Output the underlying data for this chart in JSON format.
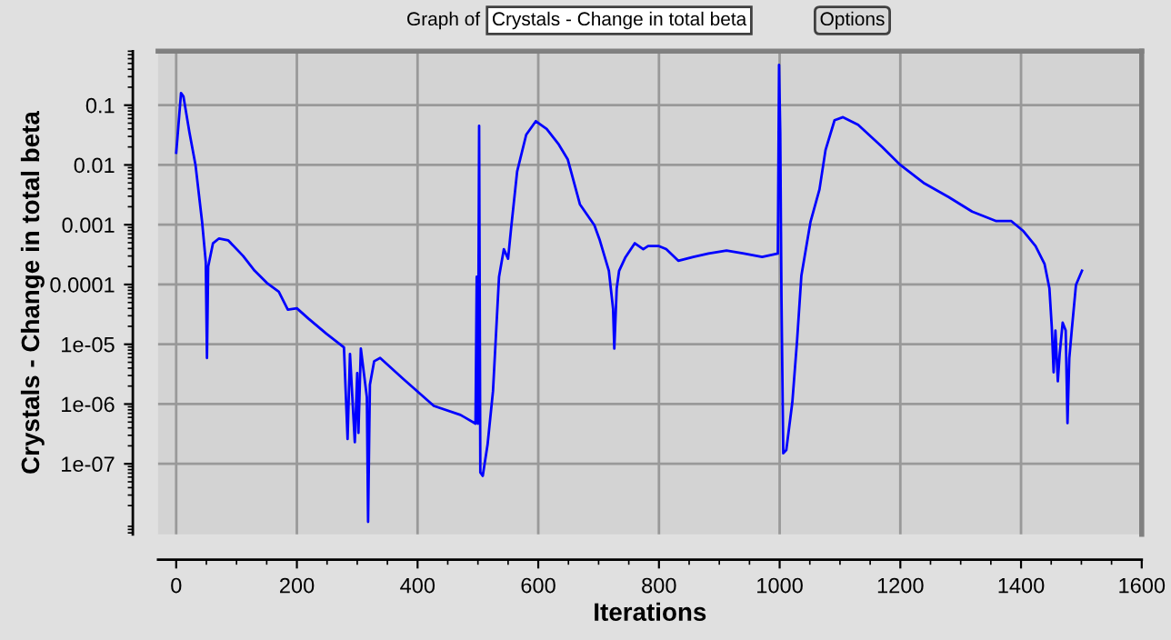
{
  "chart_data": {
    "type": "line",
    "annotations": [
      "Graph of",
      "Crystals - Change in total beta",
      "Options"
    ],
    "xlabel": "Iterations",
    "ylabel": "Crystals - Change in total beta",
    "log": "y",
    "grid": true,
    "marker": "none",
    "line_style": "solid",
    "xlim": [
      -30,
      1600
    ],
    "xticks": [
      0,
      200,
      400,
      600,
      800,
      1000,
      1200,
      1400,
      1600
    ],
    "ylim": [
      6.6e-09,
      0.8
    ],
    "yticks": [
      1e-07,
      1e-06,
      1e-05,
      0.0001,
      0.001,
      0.01,
      0.1
    ],
    "series": [
      {
        "color": "#0000ff",
        "x": [
          0,
          2,
          8,
          12,
          22,
          32,
          43,
          49,
          51,
          53,
          61,
          71,
          86,
          111,
          130,
          150,
          170,
          185,
          200,
          219,
          249,
          278,
          284,
          288,
          296,
          300,
          302,
          306,
          316,
          318,
          321,
          328,
          338,
          377,
          427,
          471,
          496,
          498,
          500,
          502,
          504,
          508,
          516,
          525,
          535,
          543,
          550,
          555,
          565,
          580,
          596,
          614,
          634,
          649,
          669,
          693,
          702,
          717,
          724,
          726,
          730,
          734,
          744,
          760,
          774,
          782,
          800,
          812,
          832,
          857,
          882,
          912,
          941,
          971,
          997,
          999,
          1001,
          1003,
          1006,
          1011,
          1021,
          1029,
          1036,
          1051,
          1066,
          1076,
          1091,
          1105,
          1130,
          1170,
          1200,
          1240,
          1280,
          1319,
          1359,
          1384,
          1404,
          1424,
          1439,
          1447,
          1451,
          1454,
          1457,
          1461,
          1464,
          1469,
          1474,
          1477,
          1480,
          1484,
          1491,
          1501
        ],
        "values": [
          0.016,
          0.028,
          0.16,
          0.14,
          0.035,
          0.01,
          0.0011,
          0.00024,
          5.9e-06,
          0.0002,
          0.00049,
          0.00059,
          0.00055,
          0.0003,
          0.00017,
          0.000107,
          7.6e-05,
          3.8e-05,
          4e-05,
          2.7e-05,
          1.5e-05,
          8.9e-06,
          2.6e-07,
          6.9e-06,
          2.3e-07,
          3.3e-06,
          3.3e-07,
          8.5e-06,
          1.3e-06,
          1.07e-08,
          2.1e-06,
          5.2e-06,
          5.9e-06,
          2.6e-06,
          9.3e-07,
          6.6e-07,
          4.7e-07,
          0.000135,
          4.7e-07,
          0.045,
          7.2e-08,
          6.3e-08,
          2.1e-07,
          1.65e-06,
          0.000135,
          0.00039,
          0.00027,
          0.00087,
          0.0078,
          0.032,
          0.054,
          0.04,
          0.022,
          0.0123,
          0.0022,
          0.00098,
          0.00055,
          0.00017,
          3.9e-05,
          8.5e-06,
          8.7e-05,
          0.00017,
          0.00028,
          0.00049,
          0.00039,
          0.00044,
          0.00044,
          0.00039,
          0.00025,
          0.00029,
          0.00033,
          0.00037,
          0.00033,
          0.00029,
          0.00033,
          0.47,
          0.035,
          6.2e-05,
          1.5e-07,
          1.7e-07,
          1.07e-06,
          1.2e-05,
          0.00014,
          0.0011,
          0.0039,
          0.0177,
          0.056,
          0.063,
          0.047,
          0.02,
          0.01,
          0.0049,
          0.0029,
          0.00166,
          0.00115,
          0.00115,
          0.00078,
          0.00044,
          0.00022,
          8.7e-05,
          1.9e-05,
          3.4e-06,
          1.7e-05,
          2.4e-06,
          6.8e-06,
          2.3e-05,
          1.7e-05,
          4.8e-07,
          5.9e-06,
          1.7e-05,
          9.8e-05,
          0.00017
        ]
      }
    ]
  }
}
